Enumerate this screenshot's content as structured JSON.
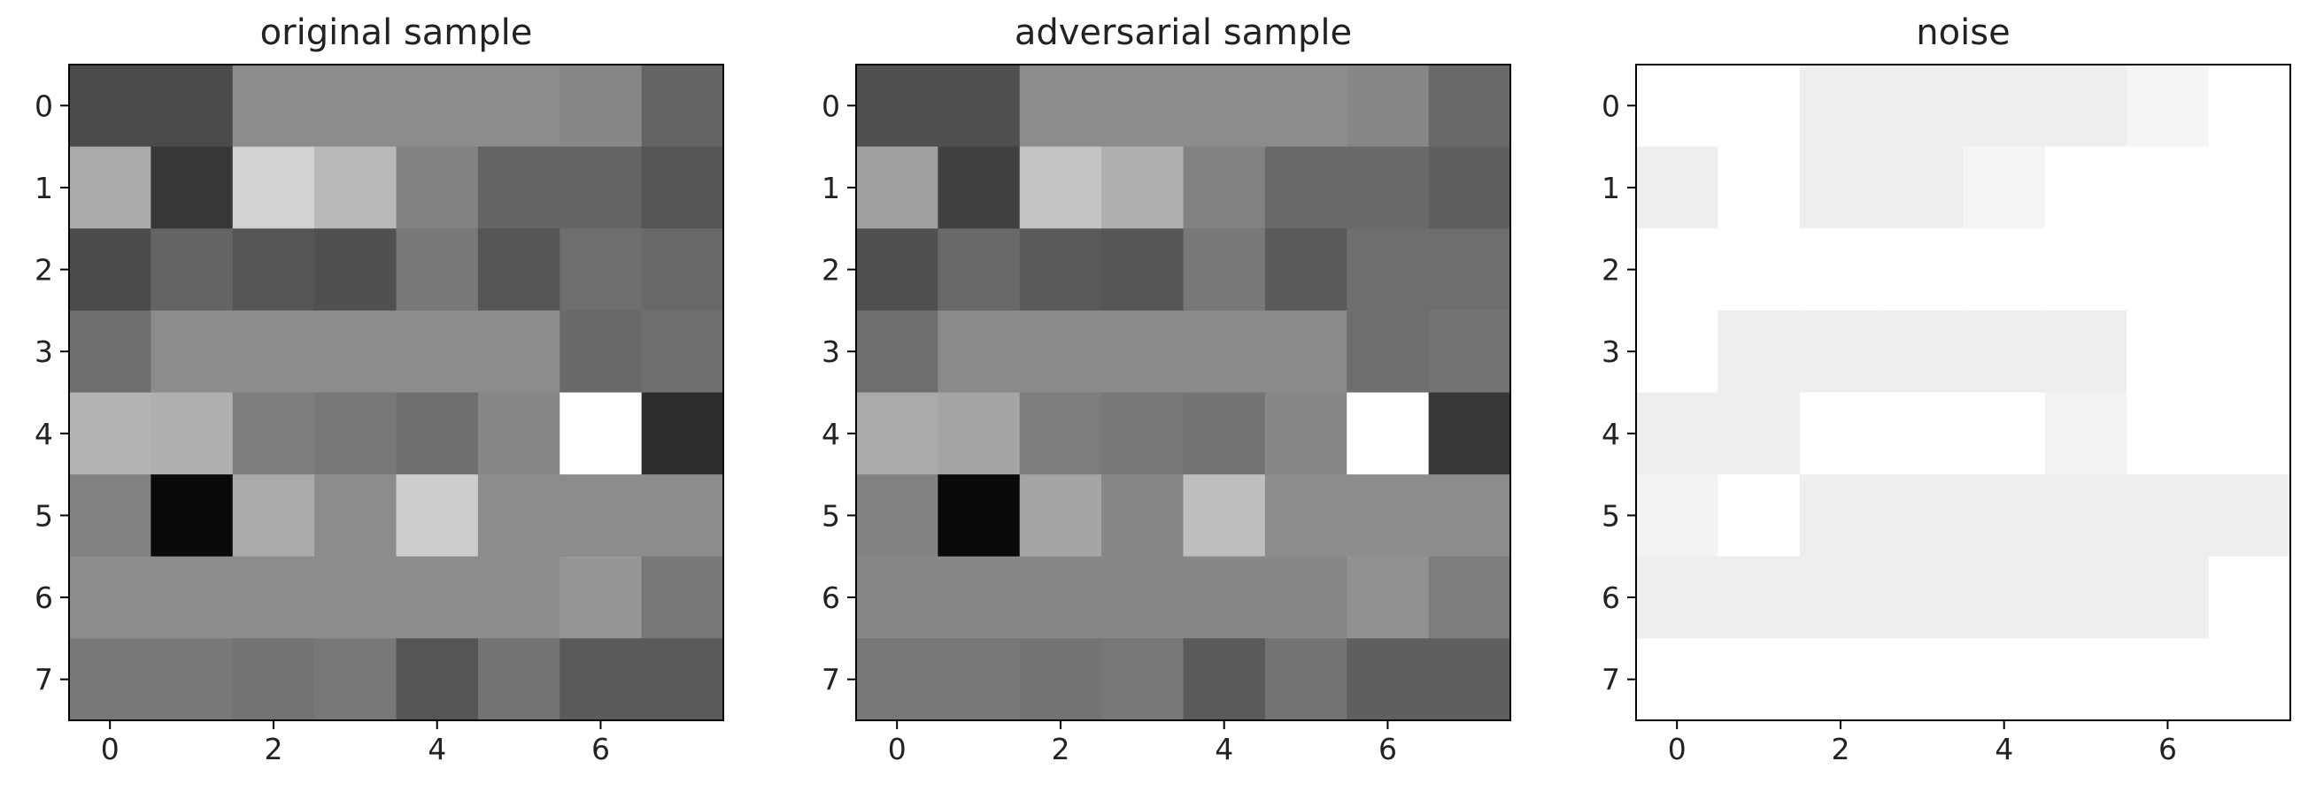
{
  "chart_data": [
    {
      "type": "heatmap",
      "title": "original sample",
      "cmap": "gray",
      "values": [
        [
          75,
          75,
          140,
          140,
          140,
          140,
          135,
          100
        ],
        [
          170,
          55,
          210,
          185,
          130,
          100,
          100,
          85
        ],
        [
          75,
          100,
          85,
          80,
          120,
          85,
          110,
          105
        ],
        [
          110,
          140,
          140,
          140,
          140,
          140,
          105,
          110
        ],
        [
          180,
          175,
          125,
          120,
          110,
          135,
          255,
          45
        ],
        [
          130,
          10,
          170,
          140,
          205,
          140,
          140,
          140
        ],
        [
          140,
          140,
          140,
          140,
          140,
          140,
          150,
          120
        ],
        [
          120,
          120,
          115,
          120,
          85,
          115,
          90,
          90
        ]
      ],
      "xlim": [
        -0.5,
        7.5
      ],
      "ylim": [
        7.5,
        -0.5
      ],
      "xticks": [
        0,
        2,
        4,
        6
      ],
      "yticks": [
        0,
        1,
        2,
        3,
        4,
        5,
        6,
        7
      ]
    },
    {
      "type": "heatmap",
      "title": "adversarial sample",
      "cmap": "gray",
      "values": [
        [
          80,
          80,
          140,
          140,
          140,
          140,
          135,
          105
        ],
        [
          160,
          65,
          195,
          175,
          130,
          105,
          105,
          95
        ],
        [
          80,
          105,
          90,
          85,
          120,
          90,
          110,
          110
        ],
        [
          110,
          138,
          138,
          138,
          138,
          138,
          110,
          115
        ],
        [
          170,
          165,
          125,
          120,
          115,
          135,
          255,
          55
        ],
        [
          130,
          10,
          165,
          135,
          190,
          140,
          140,
          140
        ],
        [
          135,
          135,
          135,
          135,
          135,
          135,
          145,
          125
        ],
        [
          120,
          120,
          115,
          120,
          90,
          115,
          95,
          95
        ]
      ],
      "xlim": [
        -0.5,
        7.5
      ],
      "ylim": [
        7.5,
        -0.5
      ],
      "xticks": [
        0,
        2,
        4,
        6
      ],
      "yticks": [
        0,
        1,
        2,
        3,
        4,
        5,
        6,
        7
      ]
    },
    {
      "type": "heatmap",
      "title": "noise",
      "cmap": "gray",
      "values": [
        [
          255,
          255,
          238,
          238,
          238,
          238,
          245,
          255
        ],
        [
          238,
          255,
          238,
          238,
          245,
          255,
          255,
          255
        ],
        [
          255,
          255,
          255,
          255,
          255,
          255,
          255,
          255
        ],
        [
          255,
          238,
          238,
          238,
          238,
          238,
          255,
          255
        ],
        [
          238,
          238,
          255,
          255,
          255,
          243,
          255,
          255
        ],
        [
          243,
          255,
          238,
          238,
          238,
          238,
          238,
          238
        ],
        [
          238,
          238,
          238,
          238,
          238,
          238,
          238,
          255
        ],
        [
          255,
          255,
          255,
          255,
          255,
          255,
          255,
          255
        ]
      ],
      "xlim": [
        -0.5,
        7.5
      ],
      "ylim": [
        7.5,
        -0.5
      ],
      "xticks": [
        0,
        2,
        4,
        6
      ],
      "yticks": [
        0,
        1,
        2,
        3,
        4,
        5,
        6,
        7
      ]
    }
  ]
}
